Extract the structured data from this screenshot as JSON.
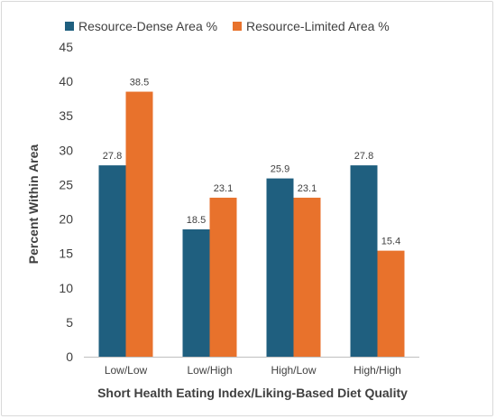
{
  "chart_data": {
    "type": "bar",
    "categories": [
      "Low/Low",
      "Low/High",
      "High/Low",
      "High/High"
    ],
    "series": [
      {
        "name": "Resource-Dense Area %",
        "color": "#1f5f7f",
        "values": [
          27.8,
          18.5,
          25.9,
          27.8
        ]
      },
      {
        "name": "Resource-Limited Area %",
        "color": "#e8722c",
        "values": [
          38.5,
          23.1,
          23.1,
          15.4
        ]
      }
    ],
    "value_labels": [
      [
        "27.8",
        "18.5",
        "25.9",
        "27.8"
      ],
      [
        "38.5",
        "23.1",
        "23.1",
        "15.4"
      ]
    ],
    "yticks": [
      "0",
      "5",
      "10",
      "15",
      "20",
      "25",
      "30",
      "35",
      "40",
      "45"
    ],
    "ylim": [
      0,
      45
    ],
    "xlabel": "Short Health Eating Index/Liking-Based Diet Quality",
    "ylabel": "Percent Within Area",
    "legend_position": "top",
    "grid": false
  }
}
